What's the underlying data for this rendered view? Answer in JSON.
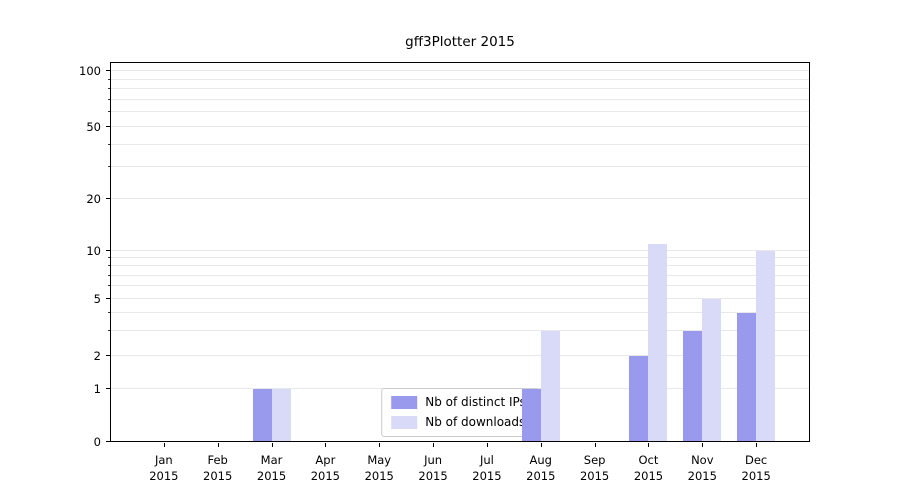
{
  "chart_data": {
    "type": "bar",
    "title": "gff3Plotter 2015",
    "categories": [
      "Jan",
      "Feb",
      "Mar",
      "Apr",
      "May",
      "Jun",
      "Jul",
      "Aug",
      "Sep",
      "Oct",
      "Nov",
      "Dec"
    ],
    "year_label": "2015",
    "series": [
      {
        "name": "Nb of distinct IPs",
        "color": "#9999ee",
        "values": [
          0,
          0,
          1,
          0,
          0,
          0,
          0,
          1,
          0,
          2,
          3,
          4
        ]
      },
      {
        "name": "Nb of downloads",
        "color": "#d9d9f8",
        "values": [
          0,
          0,
          1,
          0,
          0,
          0,
          0,
          3,
          0,
          11,
          5,
          10
        ]
      }
    ],
    "xlabel": "",
    "ylabel": "",
    "y_scale": "symlog",
    "ylim": [
      0,
      130
    ],
    "y_ticks": [
      100,
      50,
      20,
      10,
      5,
      2,
      1,
      0
    ],
    "y_minor_gridlines": [
      1,
      2,
      3,
      4,
      5,
      6,
      7,
      8,
      9,
      10,
      20,
      30,
      40,
      50,
      60,
      70,
      80,
      90,
      100
    ],
    "y_anchor_fractions": [
      [
        0,
        0
      ],
      [
        1,
        0.139
      ],
      [
        2,
        0.226
      ],
      [
        5,
        0.376
      ],
      [
        10,
        0.503
      ],
      [
        20,
        0.639
      ],
      [
        50,
        0.829
      ],
      [
        100,
        0.976
      ]
    ],
    "grid": "horizontal",
    "legend_position": "lower-center-inside"
  },
  "colors": {
    "bar_distinct_ips": "#9999ee",
    "bar_downloads": "#d9d9f8",
    "gridline": "#e8e8e8",
    "axis": "#000000",
    "legend_border": "#cccccc"
  }
}
